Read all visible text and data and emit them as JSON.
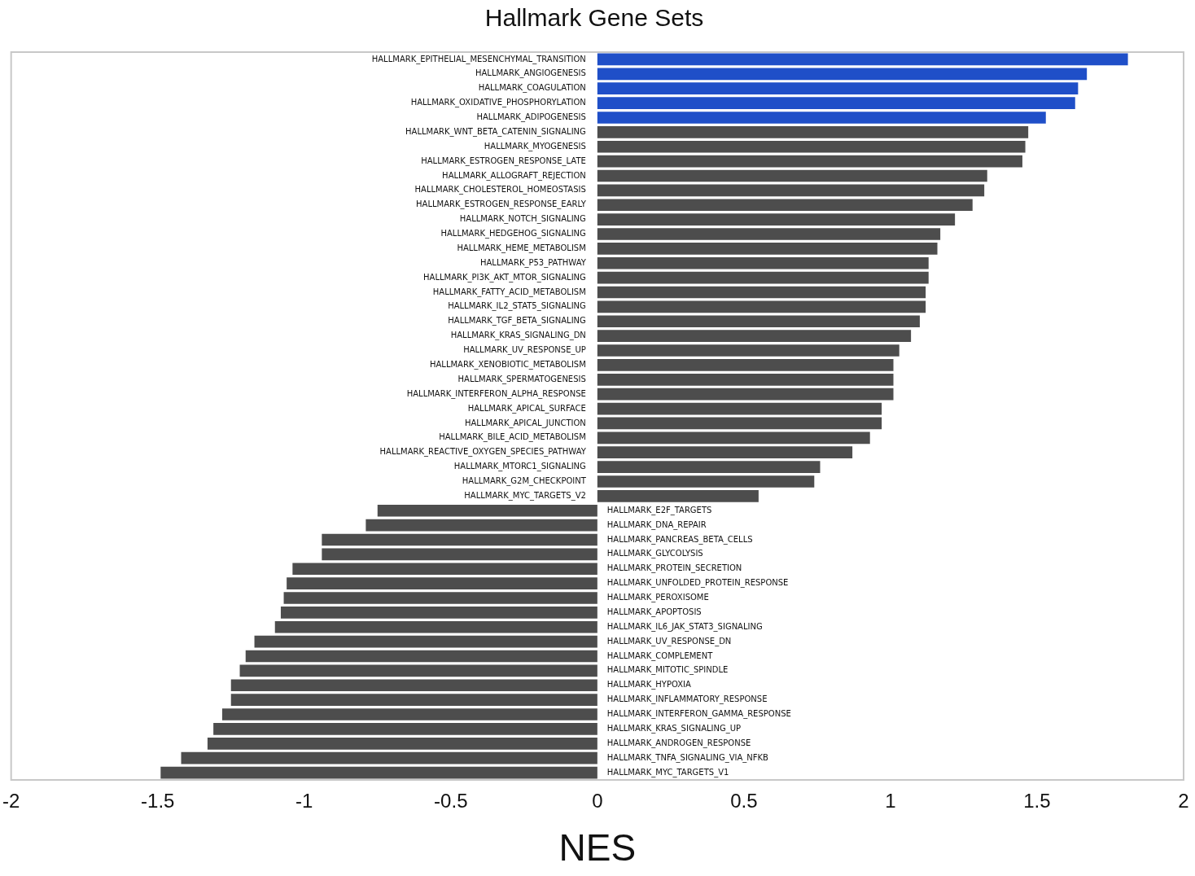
{
  "chart_data": {
    "type": "bar",
    "orientation": "horizontal",
    "title": "Hallmark Gene Sets",
    "xlabel": "NES",
    "categories": [
      "HALLMARK_EPITHELIAL_MESENCHYMAL_TRANSITION",
      "HALLMARK_ANGIOGENESIS",
      "HALLMARK_COAGULATION",
      "HALLMARK_OXIDATIVE_PHOSPHORYLATION",
      "HALLMARK_ADIPOGENESIS",
      "HALLMARK_WNT_BETA_CATENIN_SIGNALING",
      "HALLMARK_MYOGENESIS",
      "HALLMARK_ESTROGEN_RESPONSE_LATE",
      "HALLMARK_ALLOGRAFT_REJECTION",
      "HALLMARK_CHOLESTEROL_HOMEOSTASIS",
      "HALLMARK_ESTROGEN_RESPONSE_EARLY",
      "HALLMARK_NOTCH_SIGNALING",
      "HALLMARK_HEDGEHOG_SIGNALING",
      "HALLMARK_HEME_METABOLISM",
      "HALLMARK_P53_PATHWAY",
      "HALLMARK_PI3K_AKT_MTOR_SIGNALING",
      "HALLMARK_FATTY_ACID_METABOLISM",
      "HALLMARK_IL2_STAT5_SIGNALING",
      "HALLMARK_TGF_BETA_SIGNALING",
      "HALLMARK_KRAS_SIGNALING_DN",
      "HALLMARK_UV_RESPONSE_UP",
      "HALLMARK_XENOBIOTIC_METABOLISM",
      "HALLMARK_SPERMATOGENESIS",
      "HALLMARK_INTERFERON_ALPHA_RESPONSE",
      "HALLMARK_APICAL_SURFACE",
      "HALLMARK_APICAL_JUNCTION",
      "HALLMARK_BILE_ACID_METABOLISM",
      "HALLMARK_REACTIVE_OXYGEN_SPECIES_PATHWAY",
      "HALLMARK_MTORC1_SIGNALING",
      "HALLMARK_G2M_CHECKPOINT",
      "HALLMARK_MYC_TARGETS_V2",
      "HALLMARK_E2F_TARGETS",
      "HALLMARK_DNA_REPAIR",
      "HALLMARK_PANCREAS_BETA_CELLS",
      "HALLMARK_GLYCOLYSIS",
      "HALLMARK_PROTEIN_SECRETION",
      "HALLMARK_UNFOLDED_PROTEIN_RESPONSE",
      "HALLMARK_PEROXISOME",
      "HALLMARK_APOPTOSIS",
      "HALLMARK_IL6_JAK_STAT3_SIGNALING",
      "HALLMARK_UV_RESPONSE_DN",
      "HALLMARK_COMPLEMENT",
      "HALLMARK_MITOTIC_SPINDLE",
      "HALLMARK_HYPOXIA",
      "HALLMARK_INFLAMMATORY_RESPONSE",
      "HALLMARK_INTERFERON_GAMMA_RESPONSE",
      "HALLMARK_KRAS_SIGNALING_UP",
      "HALLMARK_ANDROGEN_RESPONSE",
      "HALLMARK_TNFA_SIGNALING_VIA_NFKB",
      "HALLMARK_MYC_TARGETS_V1"
    ],
    "values": [
      1.81,
      1.67,
      1.64,
      1.63,
      1.53,
      1.47,
      1.46,
      1.45,
      1.33,
      1.32,
      1.28,
      1.22,
      1.17,
      1.16,
      1.13,
      1.13,
      1.12,
      1.12,
      1.1,
      1.07,
      1.03,
      1.01,
      1.01,
      1.01,
      0.97,
      0.97,
      0.93,
      0.87,
      0.76,
      0.74,
      0.55,
      -0.75,
      -0.79,
      -0.94,
      -0.94,
      -1.04,
      -1.06,
      -1.07,
      -1.08,
      -1.1,
      -1.17,
      -1.2,
      -1.22,
      -1.25,
      -1.25,
      -1.28,
      -1.31,
      -1.33,
      -1.42,
      -1.49
    ],
    "colors": [
      "#1f4fc8",
      "#1f4fc8",
      "#1f4fc8",
      "#1f4fc8",
      "#1f4fc8",
      "#4d4d4d",
      "#4d4d4d",
      "#4d4d4d",
      "#4d4d4d",
      "#4d4d4d",
      "#4d4d4d",
      "#4d4d4d",
      "#4d4d4d",
      "#4d4d4d",
      "#4d4d4d",
      "#4d4d4d",
      "#4d4d4d",
      "#4d4d4d",
      "#4d4d4d",
      "#4d4d4d",
      "#4d4d4d",
      "#4d4d4d",
      "#4d4d4d",
      "#4d4d4d",
      "#4d4d4d",
      "#4d4d4d",
      "#4d4d4d",
      "#4d4d4d",
      "#4d4d4d",
      "#4d4d4d",
      "#4d4d4d",
      "#4d4d4d",
      "#4d4d4d",
      "#4d4d4d",
      "#4d4d4d",
      "#4d4d4d",
      "#4d4d4d",
      "#4d4d4d",
      "#4d4d4d",
      "#4d4d4d",
      "#4d4d4d",
      "#4d4d4d",
      "#4d4d4d",
      "#4d4d4d",
      "#4d4d4d",
      "#4d4d4d",
      "#4d4d4d",
      "#4d4d4d",
      "#4d4d4d",
      "#4d4d4d"
    ],
    "xlim": [
      -2,
      2
    ],
    "xticks": [
      -2,
      {
        "value": -1.5,
        "label": "-1.5"
      },
      -1,
      {
        "value": -0.5,
        "label": "-0.5"
      },
      0,
      0.5,
      1,
      1.5,
      2
    ],
    "grid": false,
    "legend": false
  }
}
